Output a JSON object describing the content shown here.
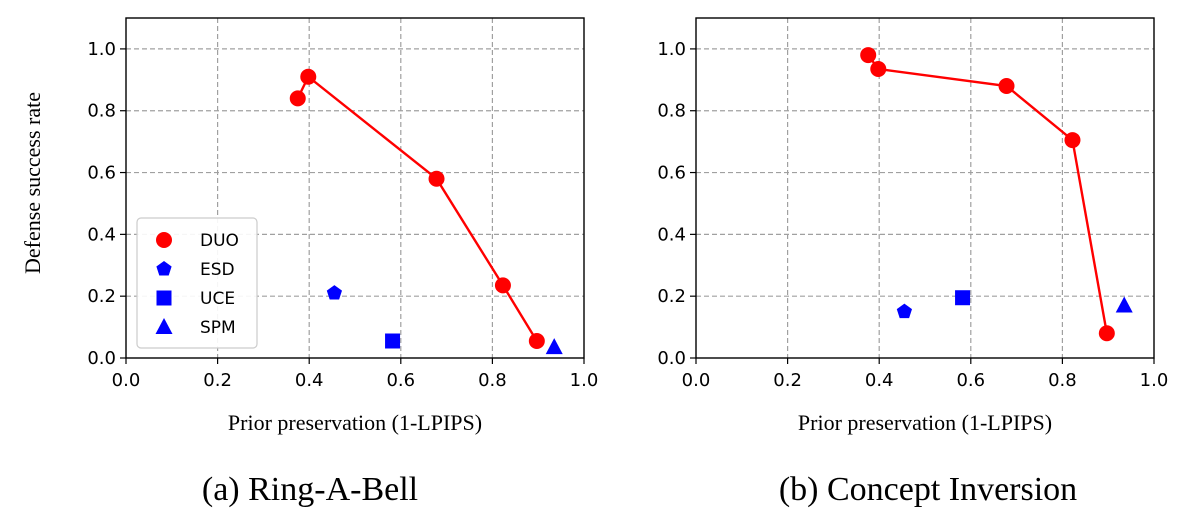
{
  "chart_data": [
    {
      "type": "scatter",
      "caption": "(a) Ring-A-Bell",
      "xlabel": "Prior preservation (1-LPIPS)",
      "ylabel": "Defense success rate",
      "xlim": [
        0.0,
        1.0
      ],
      "ylim": [
        0.0,
        1.1
      ],
      "xticks": [
        "0.0",
        "0.2",
        "0.4",
        "0.6",
        "0.8",
        "1.0"
      ],
      "yticks": [
        "0.0",
        "0.2",
        "0.4",
        "0.6",
        "0.8",
        "1.0"
      ],
      "grid": true,
      "legend": {
        "position": "lower-left",
        "entries": [
          "DUO",
          "ESD",
          "UCE",
          "SPM"
        ]
      },
      "series": [
        {
          "name": "DUO",
          "marker": "circle",
          "connected": true,
          "color": "#ff0000",
          "x": [
            0.375,
            0.398,
            0.678,
            0.823,
            0.897
          ],
          "y": [
            0.84,
            0.91,
            0.58,
            0.235,
            0.055
          ]
        },
        {
          "name": "ESD",
          "marker": "pentagon",
          "color": "#0000ff",
          "x": [
            0.455
          ],
          "y": [
            0.21
          ]
        },
        {
          "name": "UCE",
          "marker": "square",
          "color": "#0000ff",
          "x": [
            0.582
          ],
          "y": [
            0.055
          ]
        },
        {
          "name": "SPM",
          "marker": "triangle",
          "color": "#0000ff",
          "x": [
            0.935
          ],
          "y": [
            0.035
          ]
        }
      ]
    },
    {
      "type": "scatter",
      "caption": "(b) Concept Inversion",
      "xlabel": "Prior preservation (1-LPIPS)",
      "ylabel": "",
      "xlim": [
        0.0,
        1.0
      ],
      "ylim": [
        0.0,
        1.1
      ],
      "xticks": [
        "0.0",
        "0.2",
        "0.4",
        "0.6",
        "0.8",
        "1.0"
      ],
      "yticks": [
        "0.0",
        "0.2",
        "0.4",
        "0.6",
        "0.8",
        "1.0"
      ],
      "grid": true,
      "series": [
        {
          "name": "DUO",
          "marker": "circle",
          "connected": true,
          "color": "#ff0000",
          "x": [
            0.376,
            0.398,
            0.678,
            0.822,
            0.897
          ],
          "y": [
            0.98,
            0.935,
            0.88,
            0.705,
            0.08
          ]
        },
        {
          "name": "ESD",
          "marker": "pentagon",
          "color": "#0000ff",
          "x": [
            0.455
          ],
          "y": [
            0.15
          ]
        },
        {
          "name": "UCE",
          "marker": "square",
          "color": "#0000ff",
          "x": [
            0.582
          ],
          "y": [
            0.195
          ]
        },
        {
          "name": "SPM",
          "marker": "triangle",
          "color": "#0000ff",
          "x": [
            0.935
          ],
          "y": [
            0.17
          ]
        }
      ]
    }
  ]
}
